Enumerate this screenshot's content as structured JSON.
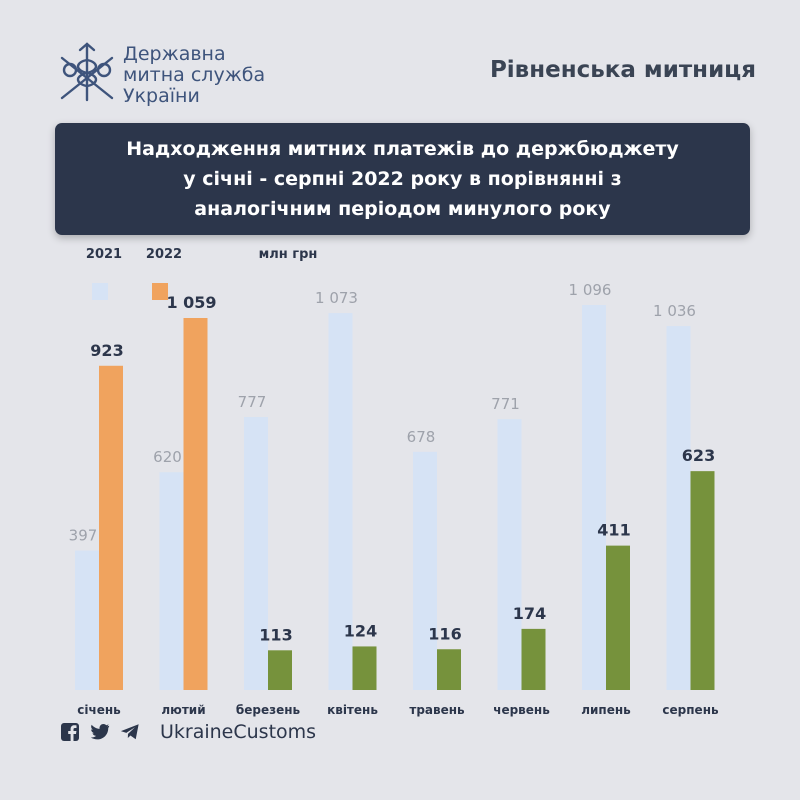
{
  "header": {
    "agency_lines": [
      "Державна",
      "митна служба",
      "України"
    ],
    "office": "Рівненська митниця"
  },
  "title_lines": [
    "Надходження митних платежів до держбюджету",
    "у січні - серпні 2022 року в порівнянні з",
    "аналогічним періодом минулого року"
  ],
  "footer": {
    "handle": "UkraineCustoms",
    "icons": [
      "facebook-icon",
      "twitter-icon",
      "telegram-icon"
    ]
  },
  "colors": {
    "bar_2021": "#d6e3f5",
    "bar_2022_early": "#f0a35e",
    "bar_2022_late": "#76923c",
    "text_dark": "#2c364b",
    "text_grey": "#9ea2ab"
  },
  "chart_data": {
    "type": "bar",
    "unit_label": "млн грн",
    "legend_position": "top-left",
    "categories": [
      "січень",
      "лютий",
      "березень",
      "квітень",
      "травень",
      "червень",
      "липень",
      "серпень"
    ],
    "series": [
      {
        "name": "2021",
        "values": [
          397,
          620,
          777,
          1073,
          678,
          771,
          1096,
          1036
        ],
        "labels": [
          "397",
          "620",
          "777",
          "1 073",
          "678",
          "771",
          "1 096",
          "1 036"
        ]
      },
      {
        "name": "2022",
        "values": [
          923,
          1059,
          113,
          124,
          116,
          174,
          411,
          623
        ],
        "labels": [
          "923",
          "1 059",
          "113",
          "124",
          "116",
          "174",
          "411",
          "623"
        ]
      }
    ],
    "ylim": [
      0,
      1150
    ],
    "grid": false
  }
}
